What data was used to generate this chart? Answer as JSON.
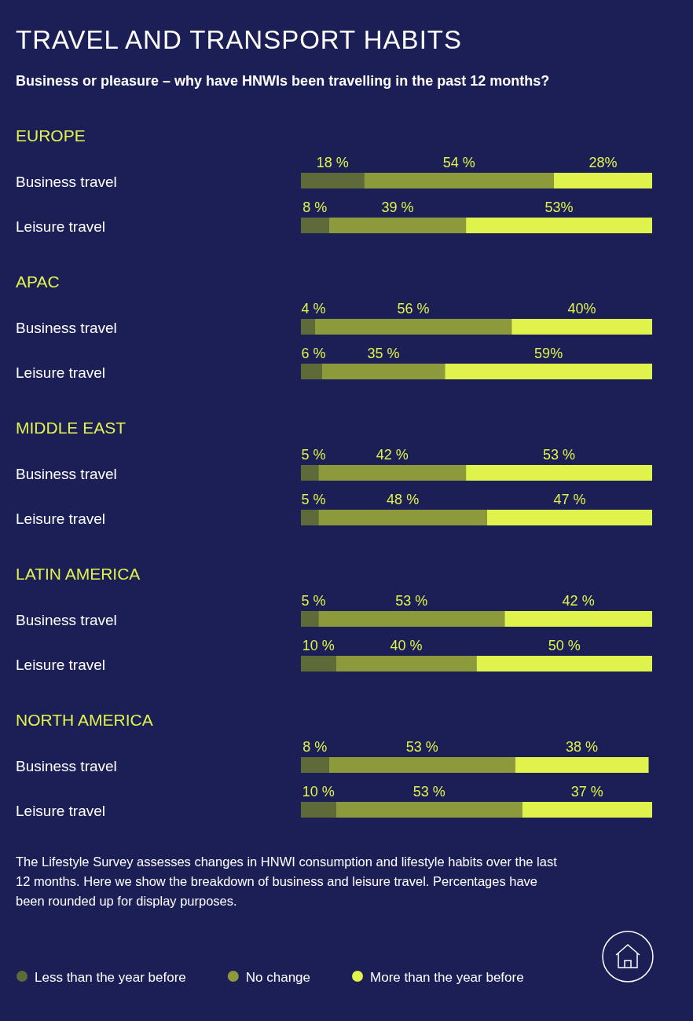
{
  "chart_data": [
    {
      "type": "bar",
      "orientation": "horizontal",
      "stacked": true,
      "title": "TRAVEL AND TRANSPORT HABITS",
      "subtitle": "Business or pleasure – why have HNWIs been travelling in the past 12 months?",
      "ylabel": "EUROPE",
      "categories": [
        "Business travel",
        "Leisure travel"
      ],
      "series": [
        {
          "color": "#5e6b38",
          "values": [
            18,
            8
          ],
          "value_labels": [
            "18 %",
            "8 %"
          ]
        },
        {
          "color": "#8c9a3c",
          "values": [
            54,
            39
          ],
          "value_labels": [
            "54 %",
            "39 %"
          ]
        },
        {
          "color": "#e0f24c",
          "values": [
            28,
            53
          ],
          "value_labels": [
            "28%",
            "53%"
          ]
        }
      ]
    },
    {
      "type": "bar",
      "orientation": "horizontal",
      "stacked": true,
      "ylabel": "APAC",
      "categories": [
        "Business travel",
        "Leisure travel"
      ],
      "series": [
        {
          "color": "#5e6b38",
          "values": [
            4,
            6
          ],
          "value_labels": [
            "4 %",
            "6 %"
          ]
        },
        {
          "color": "#8c9a3c",
          "values": [
            56,
            35
          ],
          "value_labels": [
            "56 %",
            "35 %"
          ]
        },
        {
          "color": "#e0f24c",
          "values": [
            40,
            59
          ],
          "value_labels": [
            "40%",
            "59%"
          ]
        }
      ]
    },
    {
      "type": "bar",
      "orientation": "horizontal",
      "stacked": true,
      "ylabel": "MIDDLE EAST",
      "categories": [
        "Business travel",
        "Leisure travel"
      ],
      "series": [
        {
          "color": "#5e6b38",
          "values": [
            5,
            5
          ],
          "value_labels": [
            "5 %",
            "5 %"
          ]
        },
        {
          "color": "#8c9a3c",
          "values": [
            42,
            48
          ],
          "value_labels": [
            "42 %",
            "48 %"
          ]
        },
        {
          "color": "#e0f24c",
          "values": [
            53,
            47
          ],
          "value_labels": [
            "53 %",
            "47 %"
          ]
        }
      ]
    },
    {
      "type": "bar",
      "orientation": "horizontal",
      "stacked": true,
      "ylabel": "LATIN AMERICA",
      "categories": [
        "Business travel",
        "Leisure travel"
      ],
      "series": [
        {
          "color": "#5e6b38",
          "values": [
            5,
            10
          ],
          "value_labels": [
            "5 %",
            "10 %"
          ]
        },
        {
          "color": "#8c9a3c",
          "values": [
            53,
            40
          ],
          "value_labels": [
            "53 %",
            "40 %"
          ]
        },
        {
          "color": "#e0f24c",
          "values": [
            42,
            50
          ],
          "value_labels": [
            "42 %",
            "50 %"
          ]
        }
      ]
    },
    {
      "type": "bar",
      "orientation": "horizontal",
      "stacked": true,
      "ylabel": "NORTH AMERICA",
      "legend": "bottom",
      "categories": [
        "Business travel",
        "Leisure travel"
      ],
      "series": [
        {
          "name": "Less than the year before",
          "color": "#5e6b38",
          "values": [
            8,
            10
          ],
          "value_labels": [
            "8 %",
            "10 %"
          ]
        },
        {
          "name": "No change",
          "color": "#8c9a3c",
          "values": [
            53,
            53
          ],
          "value_labels": [
            "53 %",
            "53 %"
          ]
        },
        {
          "name": "More than the year before",
          "color": "#e0f24c",
          "values": [
            38,
            37
          ],
          "value_labels": [
            "38 %",
            "37 %"
          ]
        }
      ],
      "annotations": [
        "The Lifestyle Survey assesses changes in HNWI consumption and lifestyle habits over the last 12 months. Here we show the breakdown of business and leisure travel. Percentages have been rounded up for display purposes."
      ]
    }
  ]
}
